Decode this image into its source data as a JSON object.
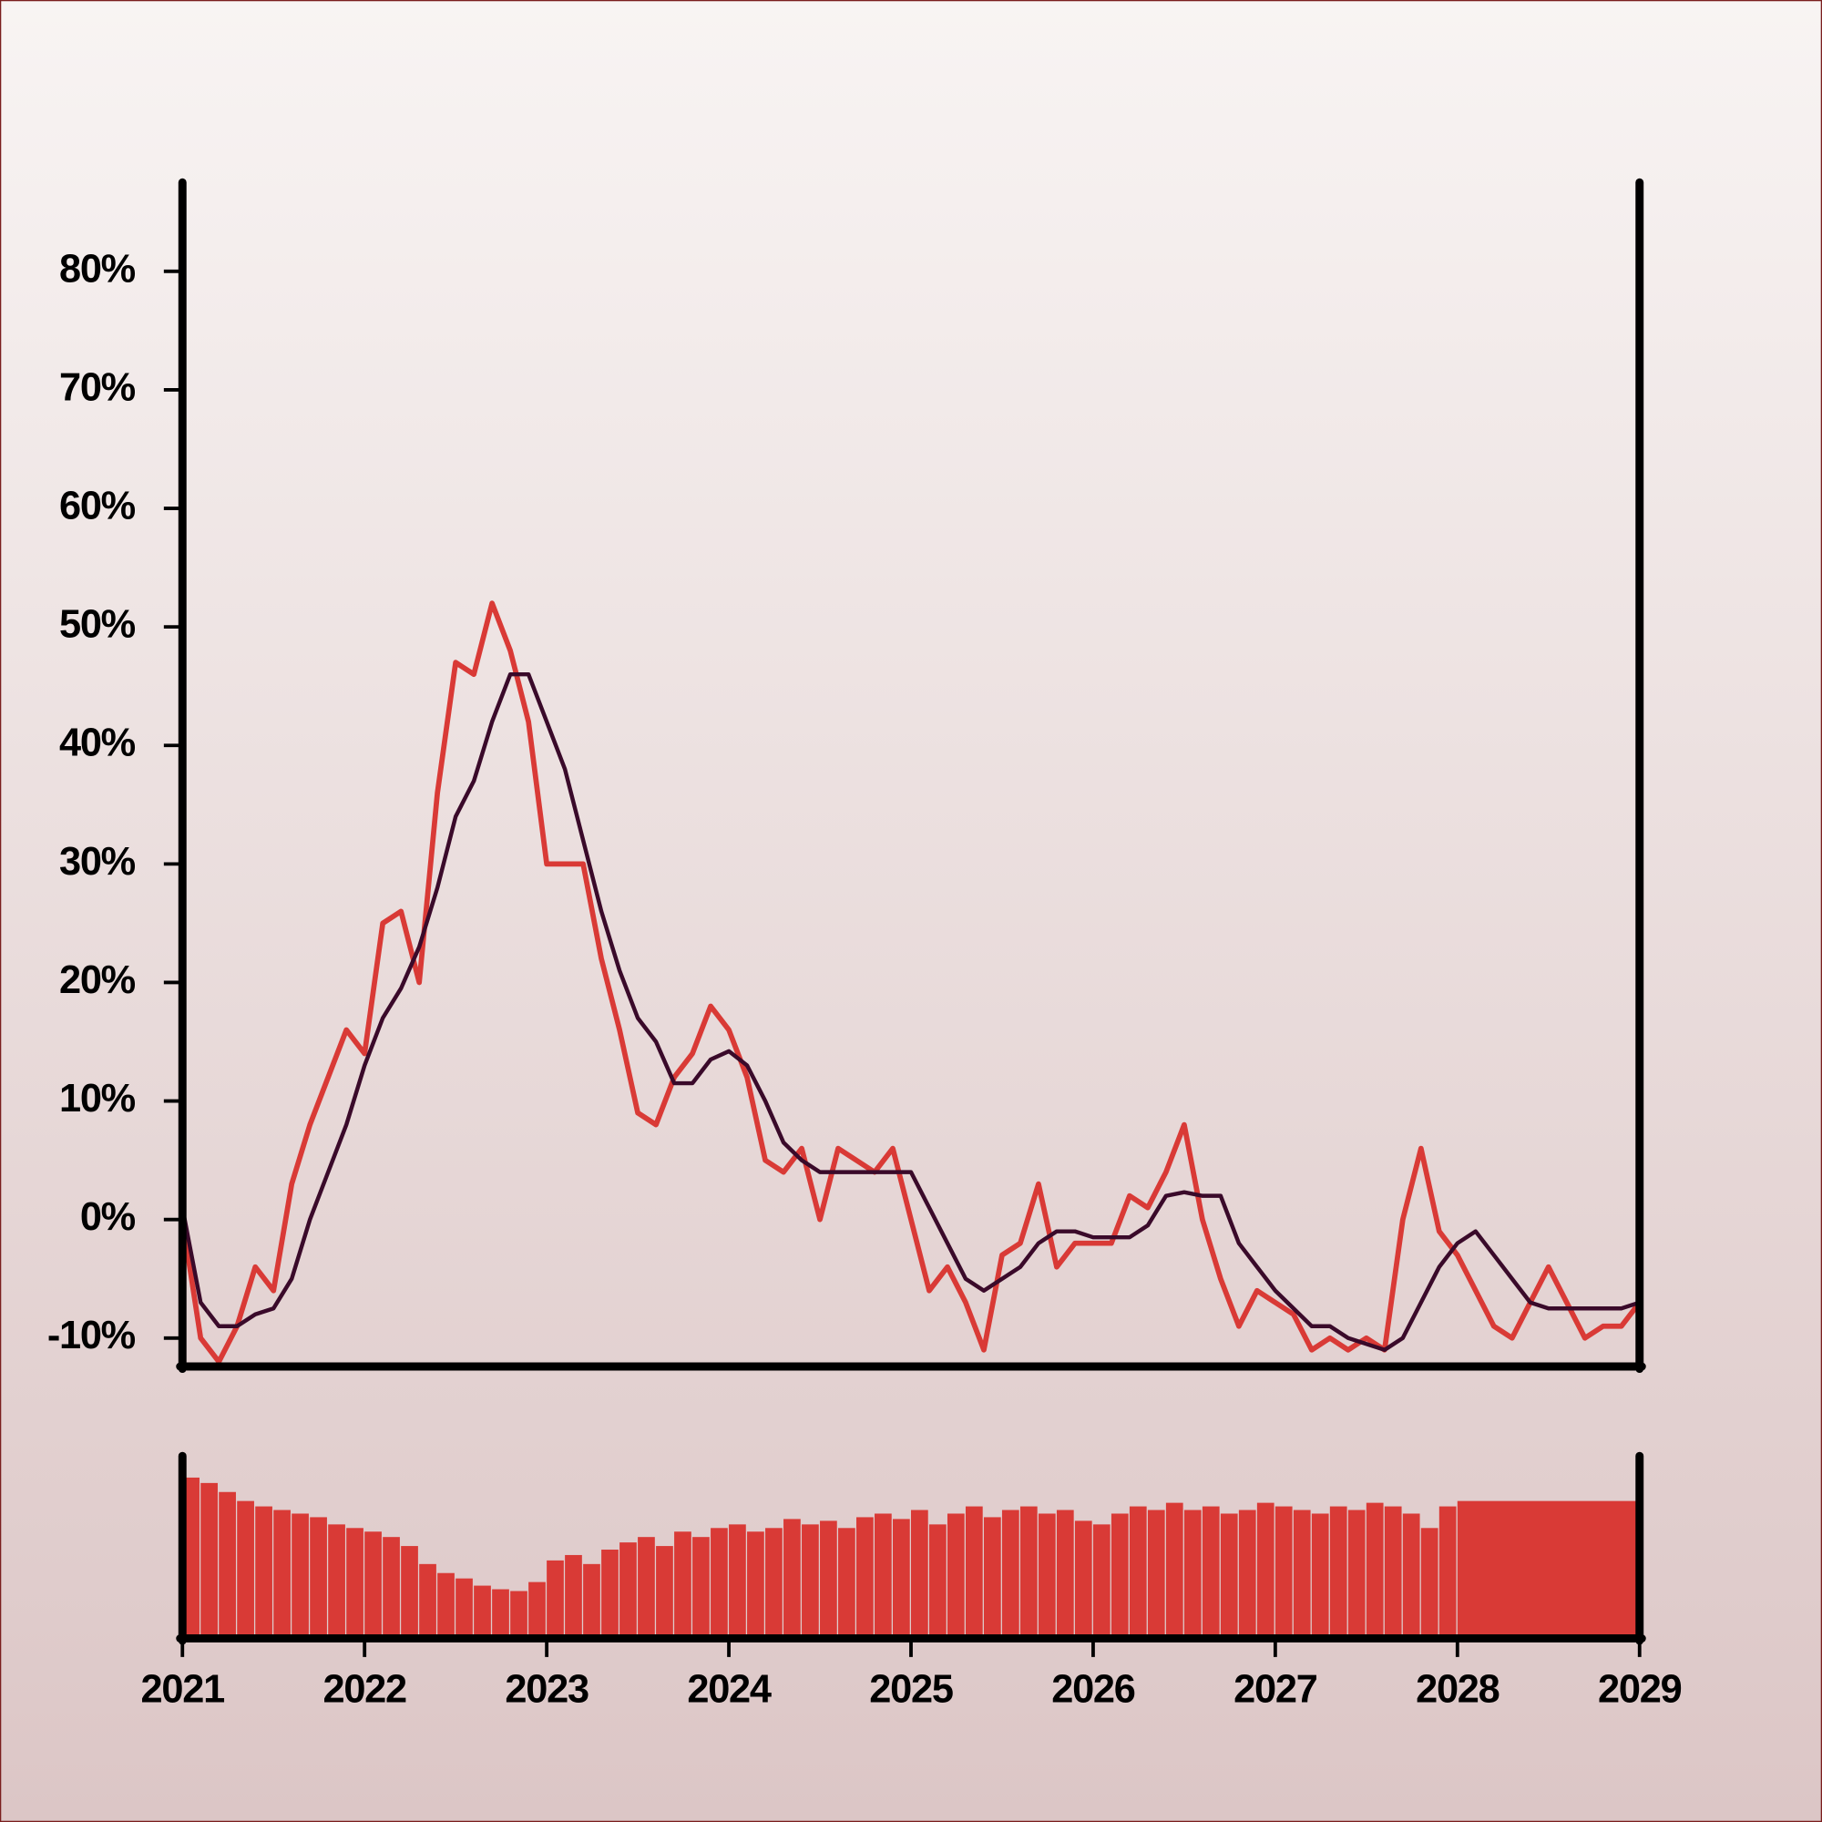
{
  "chart_data": [
    {
      "type": "line",
      "x": [
        2021.0,
        2021.1,
        2021.2,
        2021.3,
        2021.4,
        2021.5,
        2021.6,
        2021.7,
        2021.8,
        2021.9,
        2022.0,
        2022.1,
        2022.2,
        2022.3,
        2022.4,
        2022.5,
        2022.6,
        2022.7,
        2022.8,
        2022.9,
        2023.0,
        2023.1,
        2023.2,
        2023.3,
        2023.4,
        2023.5,
        2023.6,
        2023.7,
        2023.8,
        2023.9,
        2024.0,
        2024.1,
        2024.2,
        2024.3,
        2024.4,
        2024.5,
        2024.6,
        2024.7,
        2024.8,
        2024.9,
        2025.0,
        2025.1,
        2025.2,
        2025.3,
        2025.4,
        2025.5,
        2025.6,
        2025.7,
        2025.8,
        2025.9,
        2026.0,
        2026.1,
        2026.2,
        2026.3,
        2026.4,
        2026.5,
        2026.6,
        2026.7,
        2026.8,
        2026.9,
        2027.0,
        2027.1,
        2027.2,
        2027.3,
        2027.4,
        2027.5,
        2027.6,
        2027.7,
        2027.8,
        2027.9,
        2028.0,
        2028.1,
        2028.2,
        2028.3,
        2028.4,
        2028.5,
        2028.6,
        2028.7,
        2028.8,
        2028.9,
        2029.0
      ],
      "series": [
        {
          "color": "#d93a36",
          "values": [
            0,
            -10,
            -12,
            -9,
            -4,
            -6,
            3,
            8,
            12,
            16,
            14,
            25,
            26,
            20,
            36,
            47,
            46,
            52,
            48,
            42,
            30,
            30,
            30,
            22,
            16,
            9,
            8,
            12,
            14,
            18,
            16,
            12,
            5,
            4,
            6,
            0,
            6,
            5,
            4,
            6,
            0,
            -6,
            -4,
            -7,
            -11,
            -3,
            -2,
            3,
            -4,
            -2,
            -2,
            -2,
            2,
            1,
            4,
            8,
            0,
            -5,
            -9,
            -6,
            -7,
            -8,
            -11,
            -10,
            -11,
            -10,
            -11,
            0,
            6,
            -1,
            -3,
            -6,
            -9,
            -10,
            -7,
            -4,
            -7,
            -10,
            -9,
            -9,
            -7
          ]
        },
        {
          "color": "#3a0a2a",
          "values": [
            1,
            -7,
            -9,
            -9,
            -8,
            -7.5,
            -5,
            0,
            4,
            8,
            13,
            17,
            19.5,
            23,
            28,
            34,
            37,
            42,
            46,
            46,
            42,
            38,
            32,
            26,
            21,
            17,
            15,
            11.5,
            11.5,
            13.5,
            14.2,
            13,
            10,
            6.5,
            5,
            4,
            4,
            4,
            4,
            4,
            4,
            1,
            -2,
            -5,
            -6,
            -5,
            -4,
            -2,
            -1,
            -1,
            -1.5,
            -1.5,
            -1.5,
            -0.5,
            2,
            2.3,
            2,
            2,
            -2,
            -4,
            -6,
            -7.5,
            -9,
            -9,
            -10,
            -10.5,
            -11,
            -10,
            -7,
            -4,
            -2,
            -1,
            -3,
            -5,
            -7,
            -7.5,
            -7.5,
            -7.5,
            -7.5,
            -7.5,
            -7
          ]
        }
      ],
      "xlim": [
        2021,
        2029
      ],
      "ylim": [
        -12.4,
        87.5
      ],
      "yticks": [
        {
          "value": -10,
          "label": "-10%"
        },
        {
          "value": 0,
          "label": "0%"
        },
        {
          "value": 10,
          "label": "10%"
        },
        {
          "value": 20,
          "label": "20%"
        },
        {
          "value": 30,
          "label": "30%"
        },
        {
          "value": 40,
          "label": "40%"
        },
        {
          "value": 50,
          "label": "50%"
        },
        {
          "value": 60,
          "label": "60%"
        },
        {
          "value": 70,
          "label": "70%"
        },
        {
          "value": 80,
          "label": "80%"
        }
      ]
    },
    {
      "type": "bar",
      "x": [
        2021.0,
        2021.1,
        2021.2,
        2021.3,
        2021.4,
        2021.5,
        2021.6,
        2021.7,
        2021.8,
        2021.9,
        2022.0,
        2022.1,
        2022.2,
        2022.3,
        2022.4,
        2022.5,
        2022.6,
        2022.7,
        2022.8,
        2022.9,
        2023.0,
        2023.1,
        2023.2,
        2023.3,
        2023.4,
        2023.5,
        2023.6,
        2023.7,
        2023.8,
        2023.9,
        2024.0,
        2024.1,
        2024.2,
        2024.3,
        2024.4,
        2024.5,
        2024.6,
        2024.7,
        2024.8,
        2024.9,
        2025.0,
        2025.1,
        2025.2,
        2025.3,
        2025.4,
        2025.5,
        2025.6,
        2025.7,
        2025.8,
        2025.9,
        2026.0,
        2026.1,
        2026.2,
        2026.3,
        2026.4,
        2026.5,
        2026.6,
        2026.7,
        2026.8,
        2026.9,
        2027.0,
        2027.1,
        2027.2,
        2027.3,
        2027.4,
        2027.5,
        2027.6,
        2027.7,
        2027.8,
        2027.9,
        2028.0
      ],
      "values": [
        88,
        85,
        80,
        75,
        72,
        70,
        68,
        66,
        62,
        60,
        58,
        55,
        50,
        40,
        35,
        32,
        28,
        26,
        25,
        30,
        42,
        45,
        40,
        48,
        52,
        55,
        50,
        58,
        55,
        60,
        62,
        58,
        60,
        65,
        62,
        64,
        60,
        66,
        68,
        65,
        70,
        62,
        68,
        72,
        66,
        70,
        72,
        68,
        70,
        64,
        62,
        68,
        72,
        70,
        74,
        70,
        72,
        68,
        70,
        74,
        72,
        70,
        68,
        72,
        70,
        74,
        72,
        68,
        60,
        72,
        75
      ],
      "color": "#d93a36",
      "xlim": [
        2021,
        2029
      ],
      "ylim": [
        0,
        100
      ],
      "xticks": [
        2021,
        2022,
        2023,
        2024,
        2025,
        2026,
        2027,
        2028,
        2029
      ]
    }
  ]
}
